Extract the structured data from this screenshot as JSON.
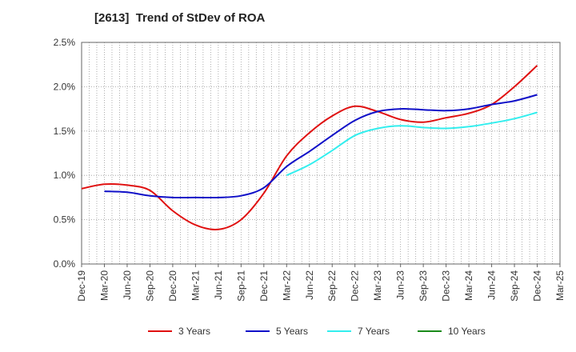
{
  "chart_data": {
    "type": "line",
    "title": "[2613]  Trend of StDev of ROA",
    "xlabel": "",
    "ylabel": "",
    "x": [
      "Dec-19",
      "Mar-20",
      "Jun-20",
      "Sep-20",
      "Dec-20",
      "Mar-21",
      "Jun-21",
      "Sep-21",
      "Dec-21",
      "Mar-22",
      "Jun-22",
      "Sep-22",
      "Dec-22",
      "Mar-23",
      "Jun-23",
      "Sep-23",
      "Dec-23",
      "Mar-24",
      "Jun-24",
      "Sep-24",
      "Dec-24",
      "Mar-25"
    ],
    "y_ticks": [
      "0.0%",
      "0.5%",
      "1.0%",
      "1.5%",
      "2.0%",
      "2.5%"
    ],
    "ylim": [
      0,
      2.5
    ],
    "y_unit": "%",
    "grid": true,
    "legend_position": "bottom",
    "series": [
      {
        "name": "3 Years",
        "color": "#e01010",
        "values": [
          0.85,
          0.9,
          0.89,
          0.83,
          0.6,
          0.44,
          0.39,
          0.5,
          0.8,
          1.22,
          1.48,
          1.67,
          1.78,
          1.72,
          1.63,
          1.6,
          1.65,
          1.7,
          1.8,
          2.0,
          2.24,
          null
        ]
      },
      {
        "name": "5 Years",
        "color": "#1010c8",
        "values": [
          null,
          0.82,
          0.81,
          0.77,
          0.75,
          0.75,
          0.75,
          0.77,
          0.86,
          1.1,
          1.27,
          1.45,
          1.62,
          1.72,
          1.75,
          1.74,
          1.73,
          1.75,
          1.8,
          1.84,
          1.91,
          null
        ]
      },
      {
        "name": "7 Years",
        "color": "#33eeee",
        "values": [
          null,
          null,
          null,
          null,
          null,
          null,
          null,
          null,
          null,
          1.0,
          1.12,
          1.28,
          1.45,
          1.53,
          1.56,
          1.54,
          1.53,
          1.55,
          1.59,
          1.64,
          1.71,
          null
        ]
      },
      {
        "name": "10 Years",
        "color": "#1a8a1a",
        "values": [
          null,
          null,
          null,
          null,
          null,
          null,
          null,
          null,
          null,
          null,
          null,
          null,
          null,
          null,
          null,
          null,
          null,
          null,
          null,
          null,
          null,
          null
        ]
      }
    ]
  }
}
